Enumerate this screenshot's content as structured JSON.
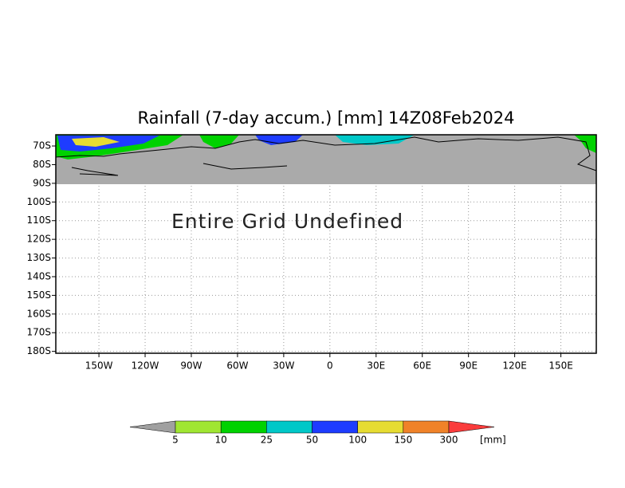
{
  "chart_data": {
    "type": "map",
    "title": "Rainfall (7-day accum.) [mm] 14Z08Feb2024",
    "annotation": "Entire Grid Undefined",
    "xlim": [
      -178,
      173
    ],
    "xticks": [
      {
        "value": -150,
        "label": "150W"
      },
      {
        "value": -120,
        "label": "120W"
      },
      {
        "value": -90,
        "label": "90W"
      },
      {
        "value": -60,
        "label": "60W"
      },
      {
        "value": -30,
        "label": "30W"
      },
      0,
      {
        "value": 30,
        "label": "30E"
      },
      {
        "value": 60,
        "label": "60E"
      },
      {
        "value": 90,
        "label": "90E"
      },
      {
        "value": 120,
        "label": "120E"
      },
      {
        "value": 150,
        "label": "150E"
      }
    ],
    "ylim": [
      -64,
      -181
    ],
    "yticks": [
      {
        "value": -70,
        "label": "70S"
      },
      {
        "value": -80,
        "label": "80S"
      },
      {
        "value": -90,
        "label": "90S"
      },
      {
        "value": -100,
        "label": "100S"
      },
      {
        "value": -110,
        "label": "110S"
      },
      {
        "value": -120,
        "label": "120S"
      },
      {
        "value": -130,
        "label": "130S"
      },
      {
        "value": -140,
        "label": "140S"
      },
      {
        "value": -150,
        "label": "150S"
      },
      {
        "value": -160,
        "label": "160S"
      },
      {
        "value": -170,
        "label": "170S"
      },
      {
        "value": -180,
        "label": "180S"
      }
    ],
    "grid": true,
    "colorbar": {
      "levels": [
        5,
        10,
        25,
        50,
        100,
        150,
        300
      ],
      "colors": [
        "#a0a0a0",
        "#a0e632",
        "#00d200",
        "#00c8c8",
        "#1e3cff",
        "#e6dc32",
        "#f08228",
        "#fa3c3c"
      ],
      "unit": "[mm]"
    }
  }
}
